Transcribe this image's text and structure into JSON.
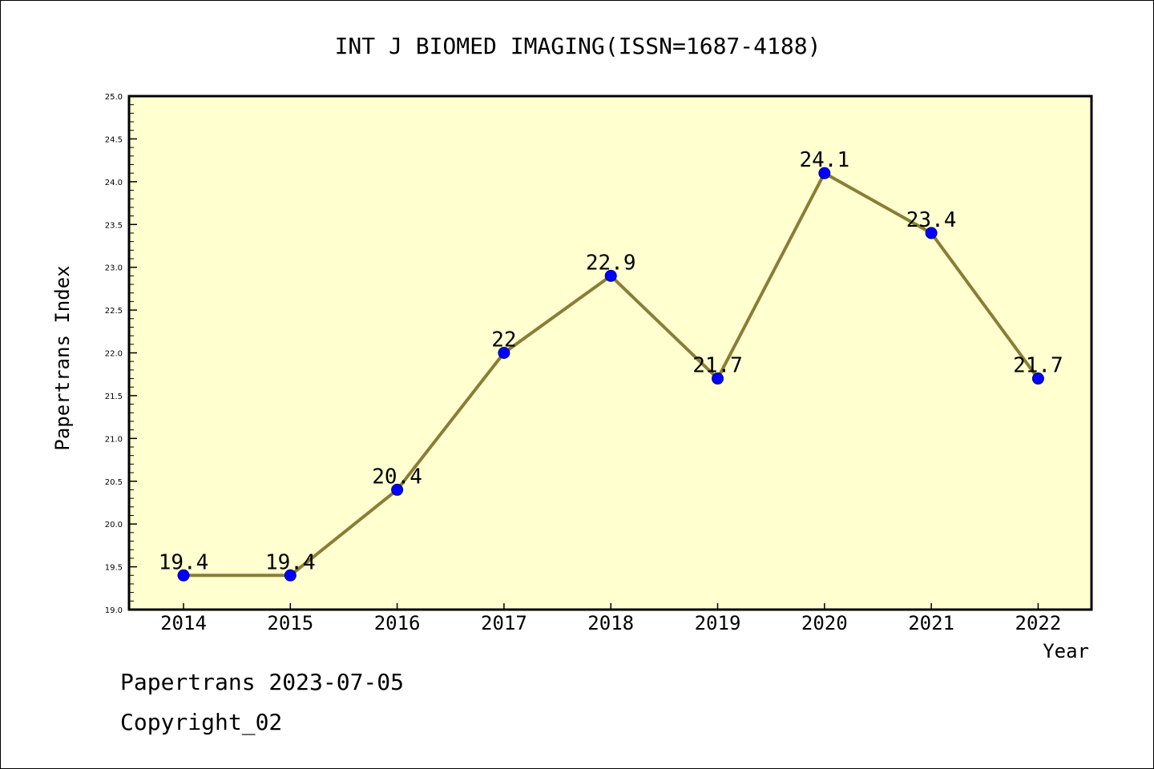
{
  "chart_data": {
    "type": "line",
    "title": "INT J BIOMED IMAGING(ISSN=1687-4188)",
    "xlabel": "Year",
    "ylabel": "Papertrans Index",
    "categories": [
      "2014",
      "2015",
      "2016",
      "2017",
      "2018",
      "2019",
      "2020",
      "2021",
      "2022"
    ],
    "values": [
      19.4,
      19.4,
      20.4,
      22.0,
      22.9,
      21.7,
      24.1,
      23.4,
      21.7
    ],
    "data_labels": [
      "19.4",
      "19.4",
      "20.4",
      "22",
      "22.9",
      "21.7",
      "24.1",
      "23.4",
      "21.7"
    ],
    "ylim": [
      19.0,
      25.0
    ],
    "y_ticks": [
      "19.0",
      "19.5",
      "20.0",
      "20.5",
      "21.0",
      "21.5",
      "22.0",
      "22.5",
      "23.0",
      "23.5",
      "24.0",
      "24.5",
      "25.0"
    ],
    "grid": false,
    "legend": "none",
    "colors": {
      "plot_background": "#ffffd0",
      "line": "#8b7d35",
      "marker_fill": "#0000ff",
      "marker_stroke": "#00008b",
      "axis": "#000000"
    }
  },
  "footer": {
    "line1": "Papertrans 2023-07-05",
    "line2": "Copyright_02"
  }
}
